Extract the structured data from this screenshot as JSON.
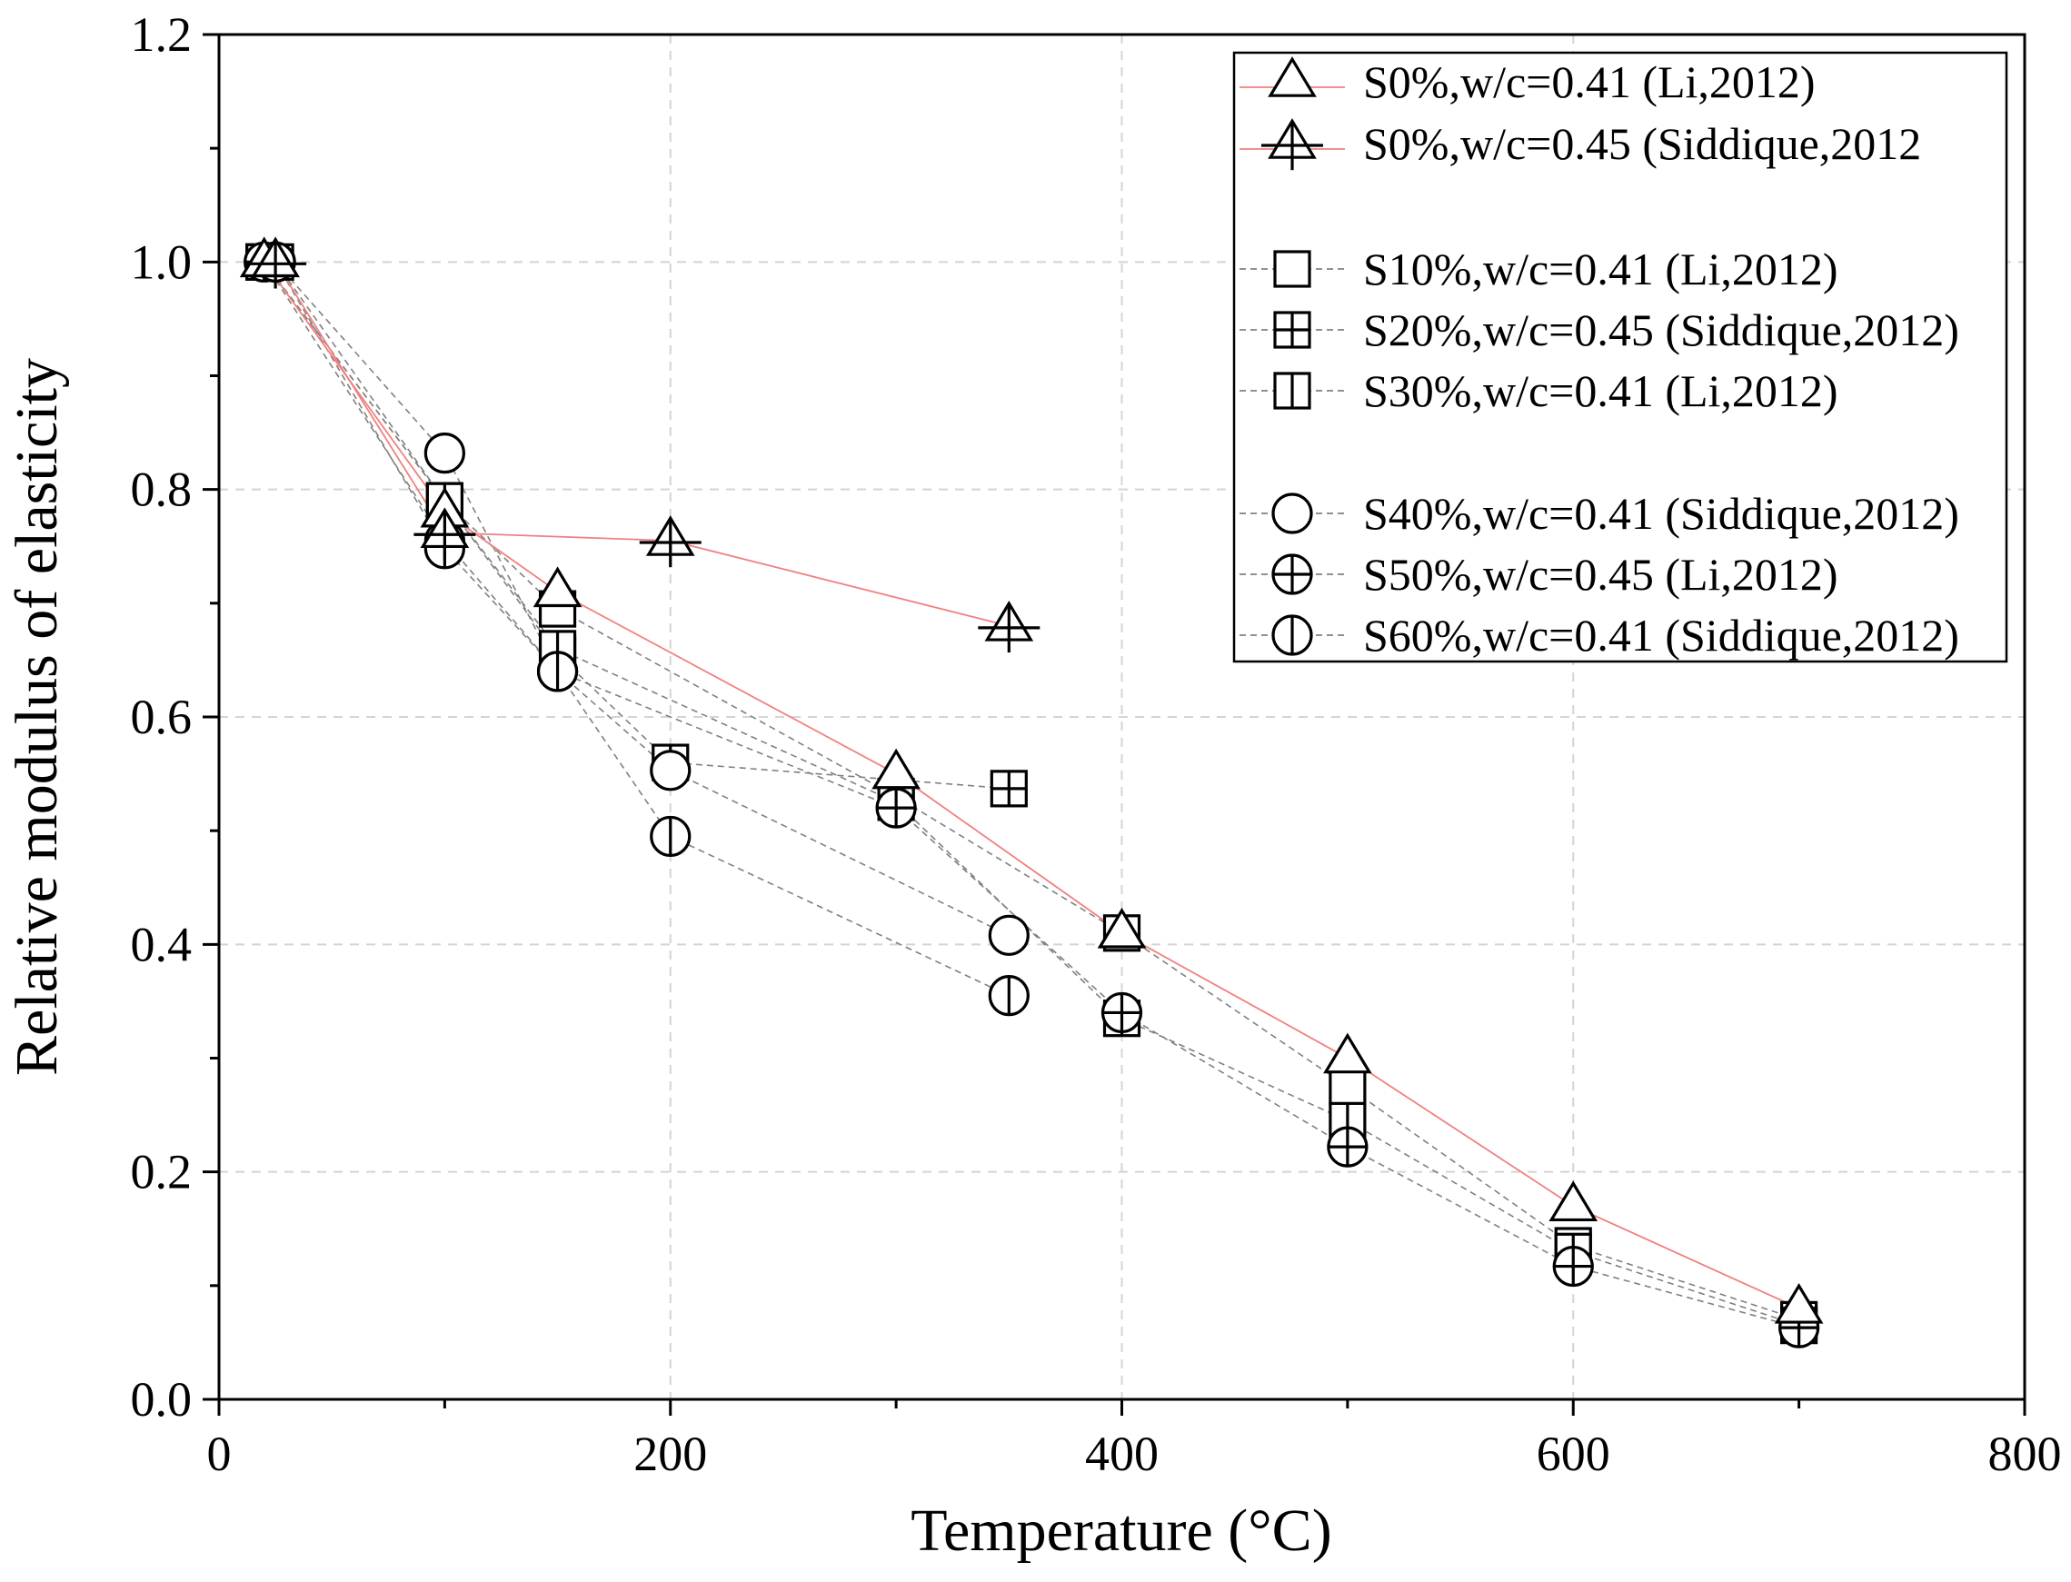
{
  "chart_data": {
    "type": "scatter",
    "title": "",
    "xlabel": "Temperature (°C)",
    "ylabel": "Relative modulus of elasticity",
    "xlim": [
      0,
      800
    ],
    "ylim": [
      0.0,
      1.2
    ],
    "x_ticks": [
      0,
      200,
      400,
      600,
      800
    ],
    "x_tick_labels": [
      "0",
      "200",
      "400",
      "600",
      "800"
    ],
    "y_ticks": [
      0.0,
      0.2,
      0.4,
      0.6,
      0.8,
      1.0,
      1.2
    ],
    "y_tick_labels": [
      "0.0",
      "0.2",
      "0.4",
      "0.6",
      "0.8",
      "1.0",
      "1.2"
    ],
    "grid": true,
    "legend_position": "top-right",
    "series": [
      {
        "name": "S0%,w/c=0.41 (Li,2012)",
        "marker": "triangle",
        "line_color": "#f08080",
        "line_style": "solid",
        "x": [
          20,
          100,
          150,
          300,
          400,
          500,
          600,
          700
        ],
        "y": [
          1.0,
          0.78,
          0.71,
          0.55,
          0.41,
          0.3,
          0.17,
          0.08
        ]
      },
      {
        "name": "S0%,w/c=0.45 (Siddique,2012",
        "marker": "triangle-plus",
        "line_color": "#f08080",
        "line_style": "solid",
        "x": [
          25,
          100,
          200,
          350
        ],
        "y": [
          1.0,
          0.762,
          0.755,
          0.68
        ]
      },
      {
        "name": "S10%,w/c=0.41 (Li,2012)",
        "marker": "square",
        "line_color": "#808080",
        "line_style": "dashed",
        "x": [
          20,
          100,
          150,
          300,
          400,
          500,
          600,
          700
        ],
        "y": [
          1.0,
          0.79,
          0.695,
          0.53,
          0.41,
          0.275,
          0.135,
          0.07
        ]
      },
      {
        "name": "S20%,w/c=0.45 (Siddique,2012)",
        "marker": "square-plus",
        "line_color": "#808080",
        "line_style": "dashed",
        "x": [
          25,
          100,
          150,
          200,
          350
        ],
        "y": [
          1.0,
          0.79,
          0.655,
          0.56,
          0.537
        ]
      },
      {
        "name": "S30%,w/c=0.41 (Li,2012)",
        "marker": "square-vline",
        "line_color": "#808080",
        "line_style": "dashed",
        "x": [
          20,
          100,
          150,
          300,
          400,
          500,
          600,
          700
        ],
        "y": [
          1.0,
          0.79,
          0.66,
          0.525,
          0.335,
          0.245,
          0.13,
          0.065
        ]
      },
      {
        "name": "S40%,w/c=0.41 (Siddique,2012)",
        "marker": "circle",
        "line_color": "#808080",
        "line_style": "dashed",
        "x": [
          25,
          100,
          150,
          200,
          350
        ],
        "y": [
          1.0,
          0.832,
          0.64,
          0.553,
          0.408
        ]
      },
      {
        "name": "S50%,w/c=0.45 (Li,2012)",
        "marker": "circle-plus",
        "line_color": "#808080",
        "line_style": "dashed",
        "x": [
          20,
          100,
          150,
          300,
          400,
          500,
          600,
          700
        ],
        "y": [
          1.0,
          0.755,
          0.64,
          0.52,
          0.34,
          0.222,
          0.117,
          0.063
        ]
      },
      {
        "name": "S60%,w/c=0.41 (Siddique,2012)",
        "marker": "circle-vline",
        "line_color": "#808080",
        "line_style": "dashed",
        "x": [
          25,
          100,
          150,
          200,
          350
        ],
        "y": [
          1.0,
          0.748,
          0.64,
          0.495,
          0.355
        ]
      }
    ]
  }
}
